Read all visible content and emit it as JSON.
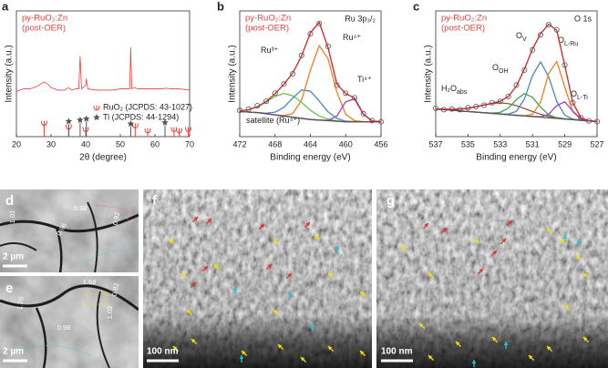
{
  "chart_data": [
    {
      "type": "line",
      "label": "a",
      "title": [
        "py-RuO₂:Zn",
        "(post-OER)"
      ],
      "xlabel": "2θ (degree)",
      "ylabel": "Intensity (a.u.)",
      "xlim": [
        20,
        70
      ],
      "xticks": [
        20,
        30,
        40,
        50,
        60,
        70
      ],
      "ylim": [
        0,
        100
      ],
      "x": [
        20,
        22,
        24,
        26,
        27,
        28,
        29,
        30,
        32,
        34,
        35,
        36,
        37,
        38,
        38.4,
        38.8,
        40,
        40.2,
        40.6,
        43,
        45,
        48,
        50,
        52,
        52.7,
        53,
        53.3,
        54,
        55,
        58,
        60,
        62,
        63,
        65,
        67,
        70
      ],
      "series": [
        {
          "color": "#e8413c",
          "values": [
            36,
            38,
            38,
            40,
            42,
            43.5,
            42,
            39,
            37,
            37,
            39,
            37,
            38,
            38,
            64,
            38,
            41,
            46,
            38,
            37,
            37,
            37,
            38,
            38,
            38,
            71,
            38,
            39,
            38,
            38,
            38,
            38,
            38.5,
            38,
            38,
            37
          ]
        }
      ],
      "references": [
        {
          "name": "RuO₂ (JCPDS: 43-1027)",
          "color": "#e8413c",
          "marker": "tulip",
          "x": [
            28.0,
            35.1,
            40.0,
            54.3,
            57.9,
            65.5,
            67.0,
            69.6
          ],
          "values": [
            9,
            6,
            4,
            7,
            3,
            4,
            3,
            4
          ]
        },
        {
          "name": "Ti (JCPDS: 44-1294)",
          "color": "#555555",
          "marker": "star",
          "x": [
            35.1,
            38.4,
            40.2,
            53.0,
            62.9
          ],
          "values": [
            10,
            11,
            12,
            8,
            9
          ]
        }
      ]
    },
    {
      "type": "line",
      "label": "b",
      "title": [
        "py-RuO₂:Zn",
        "(post-OER)"
      ],
      "annotation": "Ru 3p₃/₂",
      "xlabel": "Binding energy (eV)",
      "ylabel": "Intensity (a.u.)",
      "xlim": [
        472,
        456
      ],
      "xticks": [
        472,
        468,
        464,
        460,
        456
      ],
      "ylim": [
        0,
        110
      ],
      "x": [
        472,
        471,
        470,
        469,
        468,
        467,
        466,
        465,
        464,
        463,
        462,
        461,
        460,
        459,
        458,
        457,
        456
      ],
      "series": [
        {
          "name": "satellite (Ru⁴⁺)",
          "color": "#6cc24a",
          "values": [
            22.6,
            23.5,
            26.1,
            30.3,
            35.2,
            37.8,
            35.8,
            30,
            23,
            18.1,
            15.3,
            13.8,
            13,
            13,
            13,
            13,
            13
          ]
        },
        {
          "name": "Ru³⁺",
          "color": "#4a86c5",
          "values": [
            22,
            21.5,
            21.1,
            20.5,
            21.4,
            25.7,
            33.7,
            40.8,
            39.8,
            31.2,
            21.7,
            15.9,
            13.5,
            13.1,
            13,
            13,
            13
          ]
        },
        {
          "name": "Ru⁴⁺",
          "color": "#f07f1f",
          "values": [
            22,
            21.5,
            21,
            20,
            19,
            18.4,
            20.2,
            31.8,
            58.1,
            79.7,
            68.1,
            38.8,
            19.5,
            13.9,
            13.1,
            13,
            13
          ]
        },
        {
          "name": "Ti⁴⁺",
          "color": "#9b3fc8",
          "values": [
            22,
            21.5,
            21,
            20,
            19,
            18,
            17,
            16,
            15,
            14.5,
            14.3,
            18,
            30.6,
            32.9,
            19.6,
            13.6,
            13
          ]
        },
        {
          "color": "#555555",
          "values": [
            22,
            21.5,
            21,
            20,
            19,
            18,
            17,
            16,
            15,
            14.5,
            14,
            13.5,
            13,
            13,
            13,
            13,
            13
          ]
        },
        {
          "color": "#d62020",
          "values": [
            22.6,
            23.5,
            26.2,
            30.8,
            37.6,
            45.9,
            55.7,
            70.6,
            90.9,
            100,
            77.9,
            46,
            37.6,
            33.9,
            19.7,
            13.6,
            13
          ]
        },
        {
          "color": "#555555",
          "marker": "circle",
          "values": [
            23,
            24,
            27,
            31,
            38,
            46,
            55,
            71,
            90,
            99,
            79,
            45,
            38,
            34,
            20,
            14,
            13
          ]
        }
      ]
    },
    {
      "type": "line",
      "label": "c",
      "title": [
        "py-RuO₂:Zn",
        "(post-OER)"
      ],
      "annotation": "O 1s",
      "xlabel": "Binding energy (eV)",
      "ylabel": "Intensity (a.u.)",
      "xlim": [
        537,
        527
      ],
      "xticks": [
        537,
        535,
        533,
        531,
        529,
        527
      ],
      "ylim": [
        0,
        100
      ],
      "x": [
        537,
        536.5,
        536,
        535.5,
        535,
        534.5,
        534,
        533.5,
        533,
        532.5,
        532,
        531.5,
        531,
        530.5,
        530,
        529.5,
        529,
        528.5,
        528,
        527.5,
        527
      ],
      "series": [
        {
          "name": "H₂O",
          "sub": "abs",
          "color": "#8b5a3c",
          "values": [
            22.1,
            21.8,
            21.7,
            21.9,
            22.6,
            23.8,
            25.2,
            26.4,
            26.9,
            26.3,
            24.6,
            22.4,
            19.9,
            17.8,
            16.2,
            15.1,
            14.2,
            13.6,
            13,
            12.5,
            12
          ]
        },
        {
          "name": "O",
          "sub": "OH",
          "color": "#3aa84a",
          "values": [
            22,
            21.5,
            21,
            20.5,
            20,
            19.5,
            19,
            18.7,
            19.3,
            22.7,
            29.5,
            34.3,
            31.3,
            23.4,
            17.4,
            15,
            14.1,
            13.5,
            13,
            12.5,
            12
          ]
        },
        {
          "name": "O",
          "sub": "V",
          "color": "#4a86c5",
          "values": [
            22,
            21.5,
            21,
            20.5,
            20,
            19.5,
            19,
            18.5,
            18,
            17.9,
            20.1,
            30,
            48.7,
            59.5,
            47.7,
            28,
            17.1,
            13.9,
            13,
            12.5,
            12
          ]
        },
        {
          "name": "O",
          "sub": "L-Ru",
          "color": "#f07f1f",
          "values": [
            22,
            21.5,
            21,
            20.5,
            20,
            19.5,
            19,
            18.5,
            18,
            17.5,
            17,
            16.6,
            17.8,
            27.5,
            50.3,
            59.8,
            39.4,
            19.7,
            13.7,
            12.5,
            12
          ]
        },
        {
          "name": "O",
          "sub": "L-Ti",
          "color": "#9b3fc8",
          "values": [
            22,
            21.5,
            21,
            20.5,
            20,
            19.5,
            19,
            18.5,
            18,
            17.5,
            17,
            16.5,
            16,
            15.8,
            17.8,
            24.7,
            27.7,
            20.3,
            14.2,
            12.6,
            12
          ]
        },
        {
          "color": "#555555",
          "values": [
            22,
            21.5,
            21,
            20.5,
            20,
            19.5,
            19,
            18.5,
            18,
            17.5,
            17,
            16.5,
            16,
            15.5,
            15,
            14.5,
            14,
            13.5,
            13,
            12.5,
            12
          ]
        },
        {
          "color": "#d62020",
          "values": [
            22.1,
            21.8,
            21.7,
            21.9,
            22.6,
            23.8,
            25.2,
            26.6,
            28.2,
            31.9,
            40.2,
            53.8,
            69.7,
            82,
            89.4,
            84.6,
            56.5,
            27,
            14.9,
            12.6,
            12
          ]
        },
        {
          "color": "#555555",
          "marker": "circle",
          "values": [
            22.5,
            21.5,
            22,
            21.5,
            23,
            24,
            25,
            27,
            28,
            32,
            41,
            53,
            69,
            81,
            89,
            85,
            57,
            27,
            15,
            12.5,
            12
          ]
        }
      ]
    }
  ],
  "images": [
    {
      "label": "d",
      "scale_bar": "2 µm",
      "annotations": [
        "0.98",
        "1.01",
        "0.96",
        "0.92"
      ]
    },
    {
      "label": "e",
      "scale_bar": "2 µm",
      "annotations": [
        "1.68",
        "1.76",
        "0.98",
        "0.82",
        "1.02"
      ]
    },
    {
      "label": "f",
      "scale_bar": "100 nm"
    },
    {
      "label": "g",
      "scale_bar": "100 nm"
    }
  ]
}
